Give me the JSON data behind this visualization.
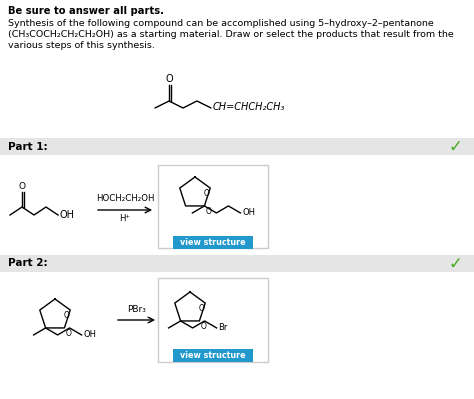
{
  "bg_color": "#ffffff",
  "header_text": "Be sure to answer all parts.",
  "body_line1": "Synthesis of the following compound can be accomplished using 5–hydroxy–2–pentanone",
  "body_line2": "(CH₃COCH₂CH₂CH₂OH) as a starting material. Draw or select the products that result from the",
  "body_line3": "various steps of this synthesis.",
  "part1_label": "Part 1:",
  "part1_reagent_line1": "HOCH₂CH₂OH",
  "part1_reagent_line2": "H⁺",
  "part2_label": "Part 2:",
  "part2_reagent": "PBr₃",
  "view_structure": "view structure",
  "part_bg": "#e5e5e5",
  "button_color": "#2299cc",
  "button_text_color": "#ffffff",
  "check_color": "#44aa22",
  "box_border": "#cccccc",
  "label_oh": "OH",
  "label_o": "O",
  "label_br": "Br"
}
